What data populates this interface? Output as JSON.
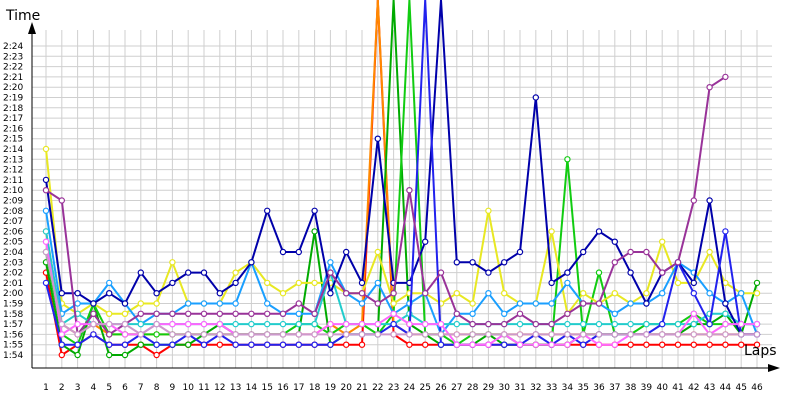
{
  "chart_data": {
    "type": "line",
    "title": "",
    "xlabel": "Laps",
    "ylabel": "Time",
    "x": [
      1,
      2,
      3,
      4,
      5,
      6,
      7,
      8,
      9,
      10,
      11,
      12,
      13,
      14,
      15,
      16,
      17,
      18,
      19,
      20,
      21,
      22,
      23,
      24,
      25,
      26,
      27,
      28,
      29,
      30,
      31,
      32,
      33,
      34,
      35,
      36,
      37,
      38,
      39,
      40,
      41,
      42,
      43,
      44,
      45,
      46
    ],
    "ylim": [
      "1:54",
      "2:25"
    ],
    "yticks": [
      "1:54",
      "1:55",
      "1:56",
      "1:57",
      "1:58",
      "1:59",
      "2:00",
      "2:01",
      "2:02",
      "2:03",
      "2:04",
      "2:05",
      "2:06",
      "2:07",
      "2:08",
      "2:09",
      "2:10",
      "2:11",
      "2:12",
      "2:13",
      "2:14",
      "2:15",
      "2:16",
      "2:17",
      "2:18",
      "2:19",
      "2:20",
      "2:21",
      "2:22",
      "2:23",
      "2:24"
    ],
    "grid": true,
    "legend": "none",
    "series": [
      {
        "color": "#ff0000",
        "values": [
          "2:02",
          "1:54",
          "1:55",
          "1:56",
          "1:55",
          "1:55",
          "1:55",
          "1:54",
          "1:55",
          "1:55",
          "1:55",
          "1:55",
          "1:55",
          "1:55",
          "1:55",
          "1:55",
          "1:55",
          "1:55",
          "1:55",
          "1:55",
          "1:55",
          "2:40",
          "1:56",
          "1:55",
          "1:55",
          "1:55",
          "1:55",
          "1:55",
          "1:55",
          "1:55",
          "1:55",
          "1:55",
          "1:55",
          "1:55",
          "1:55",
          "1:55",
          "1:55",
          "1:55",
          "1:55",
          "1:55",
          "1:55",
          "1:55",
          "1:55",
          "1:55",
          "1:55",
          "1:55"
        ]
      },
      {
        "color": "#ff8800",
        "values": [
          "2:06",
          "1:57",
          "1:56",
          "1:57",
          "1:56",
          "1:56",
          "1:56",
          "1:56",
          "1:56",
          "1:56",
          "1:56",
          "1:56",
          "1:56",
          "1:56",
          "1:56",
          "1:56",
          "1:56",
          "1:56",
          "1:57",
          "1:56",
          "1:57",
          "2:40",
          "1:57",
          "1:56",
          "1:56",
          "1:56",
          "1:56",
          "1:56",
          "1:56",
          "1:56",
          "1:56",
          "1:56",
          "1:56",
          "1:56",
          "1:56",
          "1:56",
          "1:56",
          "1:56",
          "1:56",
          "1:56",
          "1:56",
          "1:56",
          "1:56",
          "1:56",
          "1:56",
          "1:56"
        ]
      },
      {
        "color": "#00aa00",
        "values": [
          "2:03",
          "1:55",
          "1:54",
          "1:59",
          "1:54",
          "1:54",
          "1:55",
          "1:55",
          "1:55",
          "1:55",
          "1:56",
          "1:57",
          "1:56",
          "1:56",
          "1:56",
          "1:56",
          "1:56",
          "2:06",
          "1:55",
          "1:56",
          "1:56",
          "1:56",
          "2:40",
          "1:57",
          "1:56",
          "1:55",
          "1:55",
          "1:55",
          "1:56",
          "1:55",
          "1:55",
          "1:55",
          "1:55",
          "1:55",
          "1:56",
          "1:56",
          "1:56",
          "1:56",
          "1:56",
          "1:56",
          "1:56",
          "1:57",
          "1:57",
          "1:58",
          "1:56",
          "2:01"
        ]
      },
      {
        "color": "#11cc11",
        "values": [
          "2:04",
          "1:56",
          "1:55",
          "1:59",
          "1:56",
          "1:56",
          "1:56",
          "1:56",
          "1:56",
          "1:56",
          "1:56",
          "1:56",
          "1:56",
          "1:56",
          "1:56",
          "1:56",
          "1:57",
          "1:57",
          "1:56",
          "1:57",
          "1:57",
          "1:56",
          "1:58",
          "2:40",
          "1:56",
          "1:56",
          "1:55",
          "1:56",
          "1:56",
          "1:56",
          "1:55",
          "1:55",
          "1:55",
          "2:13",
          "1:56",
          "2:02",
          "1:56",
          "1:56",
          "1:57",
          "1:57",
          "1:57",
          "1:58",
          "1:57",
          "1:57",
          "1:57",
          "1:57"
        ]
      },
      {
        "color": "#e8e822",
        "values": [
          "2:14",
          "1:59",
          "1:58",
          "1:59",
          "1:58",
          "1:58",
          "1:59",
          "1:59",
          "2:03",
          "1:59",
          "1:59",
          "1:59",
          "2:02",
          "2:03",
          "2:01",
          "2:00",
          "2:01",
          "2:01",
          "2:01",
          "2:00",
          "2:00",
          "2:04",
          "1:59",
          "2:00",
          "2:00",
          "1:59",
          "2:00",
          "1:59",
          "2:08",
          "2:00",
          "1:59",
          "1:59",
          "2:06",
          "1:58",
          "2:00",
          "1:59",
          "2:00",
          "1:59",
          "2:00",
          "2:05",
          "2:01",
          "2:01",
          "2:04",
          "2:01",
          "2:00",
          "2:00"
        ]
      },
      {
        "color": "#1a9fff",
        "values": [
          "2:08",
          "1:58",
          "1:59",
          "1:59",
          "2:01",
          "1:59",
          "1:57",
          "1:58",
          "1:58",
          "1:59",
          "1:59",
          "1:59",
          "1:59",
          "2:03",
          "1:59",
          "1:58",
          "1:58",
          "1:58",
          "2:03",
          "2:00",
          "1:59",
          "2:01",
          "1:58",
          "1:59",
          "2:00",
          "1:56",
          "1:58",
          "1:58",
          "2:00",
          "1:58",
          "1:59",
          "1:59",
          "1:59",
          "2:01",
          "1:59",
          "1:59",
          "1:58",
          "1:59",
          "1:59",
          "2:00",
          "2:03",
          "2:02",
          "2:00",
          "1:59",
          "2:00",
          "1:56"
        ]
      },
      {
        "color": "#22cccc",
        "values": [
          "2:06",
          "1:57",
          "1:58",
          "1:57",
          "1:57",
          "1:57",
          "1:57",
          "1:57",
          "1:57",
          "1:57",
          "1:57",
          "1:57",
          "1:57",
          "1:57",
          "1:57",
          "1:57",
          "1:57",
          "1:57",
          "2:02",
          "1:57",
          "1:57",
          "1:57",
          "1:57",
          "1:58",
          "1:57",
          "1:57",
          "1:57",
          "1:57",
          "1:57",
          "1:57",
          "1:57",
          "1:57",
          "1:57",
          "1:57",
          "1:57",
          "1:57",
          "1:57",
          "1:57",
          "1:57",
          "1:57",
          "1:57",
          "1:57",
          "1:58",
          "1:58",
          "1:57",
          "1:57"
        ]
      },
      {
        "color": "#0000aa",
        "values": [
          "2:11",
          "2:00",
          "2:00",
          "1:59",
          "2:00",
          "1:59",
          "2:02",
          "2:00",
          "2:01",
          "2:02",
          "2:02",
          "2:00",
          "2:01",
          "2:03",
          "2:08",
          "2:04",
          "2:04",
          "2:08",
          "2:00",
          "2:04",
          "2:01",
          "2:15",
          "2:01",
          "2:01",
          "2:05",
          "2:40",
          "2:03",
          "2:03",
          "2:02",
          "2:03",
          "2:04",
          "2:19",
          "2:01",
          "2:02",
          "2:04",
          "2:06",
          "2:05",
          "2:02",
          "1:59",
          "2:02",
          "2:03",
          "2:01",
          "2:09",
          "1:59",
          "1:56",
          "1:56"
        ]
      },
      {
        "color": "#2222ee",
        "values": [
          "2:01",
          "1:55",
          "1:55",
          "1:56",
          "1:55",
          "1:55",
          "1:56",
          "1:55",
          "1:55",
          "1:56",
          "1:55",
          "1:56",
          "1:55",
          "1:55",
          "1:55",
          "1:55",
          "1:55",
          "1:55",
          "1:55",
          "1:56",
          "1:56",
          "1:56",
          "1:57",
          "1:56",
          "2:40",
          "1:55",
          "1:55",
          "1:55",
          "1:55",
          "1:55",
          "1:55",
          "1:56",
          "1:55",
          "1:56",
          "1:55",
          "1:56",
          "1:56",
          "1:56",
          "1:56",
          "1:57",
          "2:03",
          "2:00",
          "1:57",
          "2:06",
          "1:56",
          "1:56"
        ]
      },
      {
        "color": "#993399",
        "values": [
          "2:10",
          "2:09",
          "1:56",
          "1:58",
          "1:56",
          "1:57",
          "1:58",
          "1:58",
          "1:58",
          "1:58",
          "1:58",
          "1:58",
          "1:58",
          "1:58",
          "1:58",
          "1:58",
          "1:59",
          "1:58",
          "2:02",
          "2:00",
          "2:00",
          "1:59",
          "2:00",
          "2:10",
          "2:00",
          "2:02",
          "1:58",
          "1:57",
          "1:57",
          "1:57",
          "1:58",
          "1:57",
          "1:57",
          "1:58",
          "1:59",
          "1:59",
          "2:03",
          "2:04",
          "2:04",
          "2:02",
          "2:03",
          "2:09",
          "2:20",
          "2:21",
          "",
          ""
        ]
      },
      {
        "color": "#ff66ff",
        "values": [
          "2:05",
          "1:56",
          "1:57",
          "1:57",
          "1:57",
          "1:56",
          "1:56",
          "1:57",
          "1:57",
          "1:57",
          "1:57",
          "1:57",
          "1:56",
          "1:56",
          "1:56",
          "1:56",
          "1:56",
          "1:56",
          "1:57",
          "1:57",
          "1:57",
          "1:57",
          "1:58",
          "1:57",
          "1:57",
          "1:57",
          "1:55",
          "1:55",
          "1:55",
          "1:56",
          "1:55",
          "1:55",
          "1:55",
          "1:55",
          "1:56",
          "1:55",
          "1:55",
          "1:56",
          "1:56",
          "1:56",
          "1:56",
          "1:58",
          "1:56",
          "1:57",
          "1:57",
          "1:57"
        ]
      },
      {
        "color": "#cc99cc",
        "values": [
          "2:04",
          "1:57",
          "1:56",
          "1:57",
          "1:57",
          "1:57",
          "1:56",
          "1:57",
          "1:56",
          "1:56",
          "1:56",
          "1:56",
          "1:56",
          "1:56",
          "1:56",
          "1:56",
          "1:56",
          "1:56",
          "1:56",
          "1:56",
          "1:56",
          "1:56",
          "1:56",
          "1:56",
          "1:56",
          "1:56",
          "1:56",
          "1:56",
          "1:56",
          "1:56",
          "1:56",
          "1:56",
          "1:56",
          "1:56",
          "1:56",
          "1:56",
          "1:56",
          "1:56",
          "1:56",
          "1:56",
          "1:56",
          "1:56",
          "1:56",
          "1:56",
          "1:56",
          "1:56"
        ]
      }
    ]
  }
}
